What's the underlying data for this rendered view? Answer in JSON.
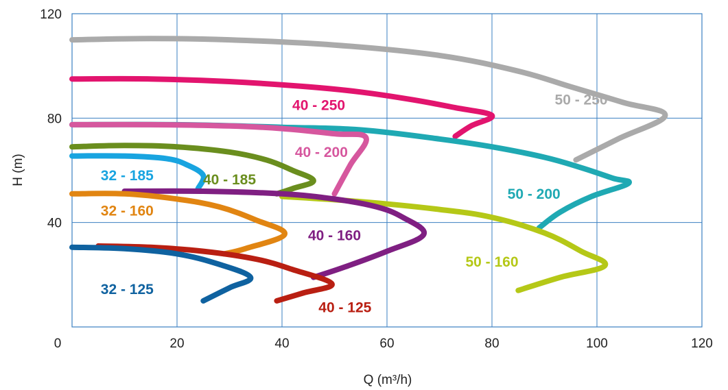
{
  "chart_data": {
    "type": "line",
    "xlabel": "Q (m³/h)",
    "ylabel": "H (m)",
    "xlim": [
      0,
      120
    ],
    "ylim": [
      0,
      120
    ],
    "x_ticks": [
      0,
      20,
      40,
      60,
      80,
      100,
      120
    ],
    "y_ticks": [
      40,
      80,
      120
    ],
    "grid": true,
    "series": [
      {
        "name": "50 - 250",
        "color": "#aaaaaa",
        "label_pos": [
          97,
          87
        ],
        "points": [
          [
            0,
            110
          ],
          [
            15,
            110.5
          ],
          [
            30,
            110
          ],
          [
            50,
            108
          ],
          [
            70,
            104
          ],
          [
            85,
            98
          ],
          [
            95,
            92
          ],
          [
            105,
            86
          ],
          [
            113,
            81
          ],
          [
            104,
            72
          ],
          [
            96,
            64
          ]
        ]
      },
      {
        "name": "40 - 250",
        "color": "#e2146e",
        "label_pos": [
          47,
          85
        ],
        "points": [
          [
            0,
            95
          ],
          [
            15,
            95
          ],
          [
            30,
            94
          ],
          [
            45,
            92
          ],
          [
            55,
            90
          ],
          [
            65,
            87
          ],
          [
            73,
            84
          ],
          [
            80,
            81
          ],
          [
            76,
            77
          ],
          [
            73,
            73
          ]
        ]
      },
      {
        "name": "50 - 200",
        "color": "#1fa9b3",
        "label_pos": [
          88,
          51
        ],
        "points": [
          [
            0,
            77.5
          ],
          [
            20,
            77.5
          ],
          [
            40,
            76.5
          ],
          [
            55,
            75.5
          ],
          [
            70,
            72
          ],
          [
            80,
            69
          ],
          [
            90,
            65
          ],
          [
            97,
            61
          ],
          [
            103,
            57
          ],
          [
            106,
            55
          ],
          [
            99,
            50
          ],
          [
            93,
            44
          ],
          [
            89,
            38
          ]
        ]
      },
      {
        "name": "40 - 200",
        "color": "#d6579e",
        "label_pos": [
          47.5,
          67
        ],
        "points": [
          [
            0,
            77.5
          ],
          [
            15,
            77.5
          ],
          [
            30,
            77
          ],
          [
            40,
            76
          ],
          [
            50,
            74
          ],
          [
            56,
            72.5
          ],
          [
            53,
            62
          ],
          [
            50,
            51
          ]
        ]
      },
      {
        "name": "40 - 185",
        "color": "#6a8e1e",
        "label_pos": [
          30,
          56.5
        ],
        "points": [
          [
            0,
            69
          ],
          [
            10,
            69.5
          ],
          [
            20,
            69
          ],
          [
            30,
            67
          ],
          [
            37,
            64
          ],
          [
            42,
            60
          ],
          [
            46,
            56
          ],
          [
            42,
            53
          ],
          [
            39,
            51
          ]
        ]
      },
      {
        "name": "32 - 185",
        "color": "#18a4e0",
        "label_pos": [
          10.5,
          58
        ],
        "points": [
          [
            0,
            65.5
          ],
          [
            10,
            65.5
          ],
          [
            18,
            64.5
          ],
          [
            22,
            62
          ],
          [
            25,
            58
          ],
          [
            24,
            53
          ]
        ]
      },
      {
        "name": "50 - 160",
        "color": "#b5c817",
        "label_pos": [
          80,
          25
        ],
        "points": [
          [
            40,
            50
          ],
          [
            55,
            48
          ],
          [
            70,
            45
          ],
          [
            80,
            42
          ],
          [
            90,
            36
          ],
          [
            97,
            29
          ],
          [
            101.5,
            23.5
          ],
          [
            93,
            19
          ],
          [
            85,
            14
          ]
        ]
      },
      {
        "name": "40 - 160",
        "color": "#7f1f82",
        "label_pos": [
          50,
          35
        ],
        "points": [
          [
            10,
            52
          ],
          [
            25,
            52
          ],
          [
            40,
            51
          ],
          [
            50,
            49
          ],
          [
            58,
            46
          ],
          [
            63,
            42
          ],
          [
            67,
            35.5
          ],
          [
            60,
            29
          ],
          [
            52,
            23
          ],
          [
            46,
            19
          ]
        ]
      },
      {
        "name": "32 - 160",
        "color": "#e18512",
        "label_pos": [
          10.5,
          44.5
        ],
        "points": [
          [
            0,
            51
          ],
          [
            10,
            51
          ],
          [
            20,
            49
          ],
          [
            28,
            46
          ],
          [
            35,
            41
          ],
          [
            40.5,
            35.5
          ],
          [
            33,
            30
          ],
          [
            29,
            28
          ]
        ]
      },
      {
        "name": "40 - 125",
        "color": "#b91f12",
        "label_pos": [
          52,
          7.5
        ],
        "points": [
          [
            5,
            31
          ],
          [
            15,
            30.5
          ],
          [
            25,
            29
          ],
          [
            35,
            26
          ],
          [
            42,
            22
          ],
          [
            49.5,
            16.5
          ],
          [
            44,
            13
          ],
          [
            39,
            10
          ]
        ]
      },
      {
        "name": "32 - 125",
        "color": "#0f62a0",
        "label_pos": [
          10.5,
          14.5
        ],
        "points": [
          [
            0,
            30.5
          ],
          [
            10,
            30
          ],
          [
            20,
            28
          ],
          [
            28,
            24
          ],
          [
            34,
            19
          ],
          [
            30,
            15
          ],
          [
            25,
            10
          ]
        ]
      }
    ]
  }
}
